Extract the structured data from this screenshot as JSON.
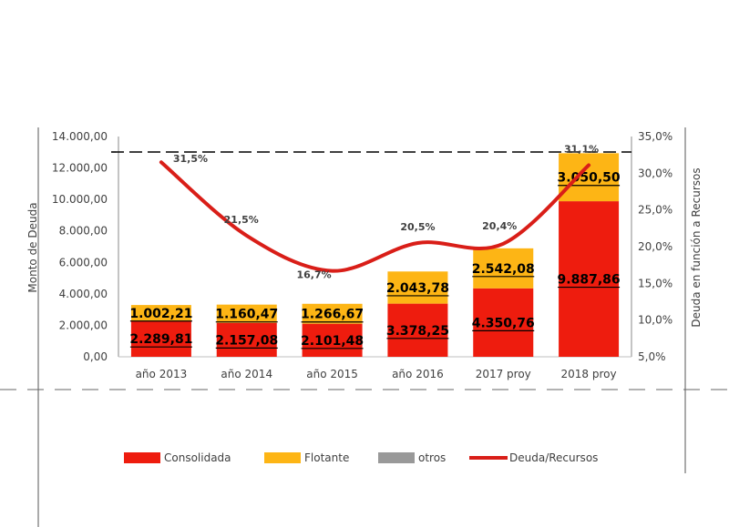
{
  "chart_data": {
    "type": "bar",
    "stacked": true,
    "categories": [
      "año 2013",
      "año 2014",
      "año 2015",
      "año 2016",
      "2017 proy",
      "2018 proy"
    ],
    "series": [
      {
        "name": "Consolidada",
        "values": [
          2289.81,
          2157.08,
          2101.48,
          3378.25,
          4350.76,
          9887.86
        ],
        "labels": [
          "2.289,81",
          "2.157,08",
          "2.101,48",
          "3.378,25",
          "4.350,76",
          "9.887,86"
        ],
        "color": "#ee1c0e"
      },
      {
        "name": "Flotante",
        "values": [
          1002.21,
          1160.47,
          1266.67,
          2043.78,
          2542.08,
          3050.5
        ],
        "labels": [
          "1.002,21",
          "1.160,47",
          "1.266,67",
          "2.043,78",
          "2.542,08",
          "3.050,50"
        ],
        "color": "#fdb515"
      },
      {
        "name": "otros",
        "values": [
          0,
          0,
          0,
          0,
          0,
          0
        ],
        "color": "#999999"
      }
    ],
    "line_series": {
      "name": "Deuda/Recursos",
      "values": [
        31.5,
        21.5,
        16.7,
        20.5,
        20.4,
        31.1
      ],
      "labels": [
        "31,5%",
        "21,5%",
        "16,7%",
        "20,5%",
        "20,4%",
        "31,1%"
      ],
      "color": "#d91e18",
      "axis": "right"
    },
    "ylabel": "Monto de Deuda",
    "y2label": "Deuda en función a Recursos",
    "ylim": [
      0,
      14000
    ],
    "y_ticks": [
      "0,00",
      "2.000,00",
      "4.000,00",
      "6.000,00",
      "8.000,00",
      "10.000,00",
      "12.000,00",
      "14.000,00"
    ],
    "y_tick_values": [
      0,
      2000,
      4000,
      6000,
      8000,
      10000,
      12000,
      14000
    ],
    "y2lim": [
      5,
      35
    ],
    "y2_ticks": [
      "5,0%",
      "10,0%",
      "15,0%",
      "20,0%",
      "25,0%",
      "30,0%",
      "35,0%"
    ],
    "y2_tick_values": [
      5,
      10,
      15,
      20,
      25,
      30,
      35
    ],
    "legend_position": "bottom",
    "grid": false
  }
}
